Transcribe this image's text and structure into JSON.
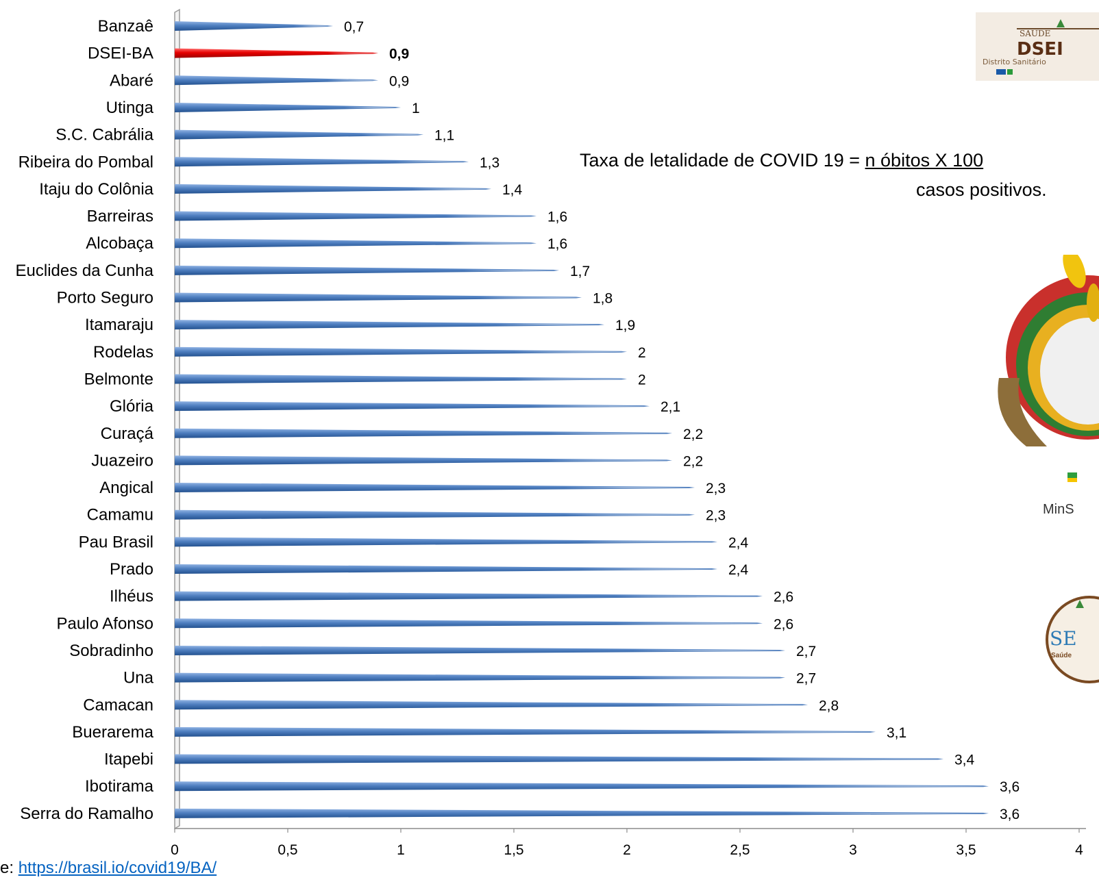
{
  "chart_data": {
    "type": "bar",
    "orientation": "horizontal",
    "categories": [
      "Banzaê",
      "DSEI-BA",
      "Abaré",
      "Utinga",
      "S.C. Cabrália",
      "Ribeira do Pombal",
      "Itaju do Colônia",
      "Barreiras",
      "Alcobaça",
      "Euclides da Cunha",
      "Porto Seguro",
      "Itamaraju",
      "Rodelas",
      "Belmonte",
      "Glória",
      "Curaçá",
      "Juazeiro",
      "Angical",
      "Camamu",
      "Pau Brasil",
      "Prado ",
      "Ilhéus",
      "Paulo Afonso",
      "Sobradinho",
      "Una",
      "Camacan",
      "Buerarema",
      "Itapebi",
      "Ibotirama",
      "Serra do Ramalho"
    ],
    "values": [
      0.7,
      0.9,
      0.9,
      1,
      1.1,
      1.3,
      1.4,
      1.6,
      1.6,
      1.7,
      1.8,
      1.9,
      2,
      2,
      2.1,
      2.2,
      2.2,
      2.3,
      2.3,
      2.4,
      2.4,
      2.6,
      2.6,
      2.7,
      2.7,
      2.8,
      3.1,
      3.4,
      3.6,
      3.6
    ],
    "value_labels": [
      "0,7",
      "0,9",
      "0,9",
      "1",
      "1,1",
      "1,3",
      "1,4",
      "1,6",
      "1,6",
      "1,7",
      "1,8",
      "1,9",
      "2",
      "2",
      "2,1",
      "2,2",
      "2,2",
      "2,3",
      "2,3",
      "2,4",
      "2,4",
      "2,6",
      "2,6",
      "2,7",
      "2,7",
      "2,8",
      "3,1",
      "3,4",
      "3,6",
      "3,6"
    ],
    "highlight_index": 1,
    "xlim": [
      0,
      4
    ],
    "x_ticks": [
      0,
      0.5,
      1,
      1.5,
      2,
      2.5,
      3,
      3.5,
      4
    ],
    "x_tick_labels": [
      "0",
      "0,5",
      "1",
      "1,5",
      "2",
      "2,5",
      "3",
      "3,5",
      "4"
    ],
    "grid": false,
    "colors": {
      "bar": "#4f7fc0",
      "bar_dark": "#2d5a9a",
      "highlight": "#e60000"
    }
  },
  "formula": {
    "prefix": "Taxa de letalidade de COVID 19 = ",
    "numerator": "n óbitos  X 100",
    "denominator": "casos positivos."
  },
  "source": {
    "prefix": "e: ",
    "link": "https://brasil.io/covid19/BA/"
  },
  "logos": {
    "dsei_top_text": "SAÚDE",
    "dsei_main": "DSEI",
    "dsei_sub": "Distrito Sanitário",
    "ministry": "MinS",
    "sesai": "SE",
    "sesai_sub": "Saúde"
  }
}
